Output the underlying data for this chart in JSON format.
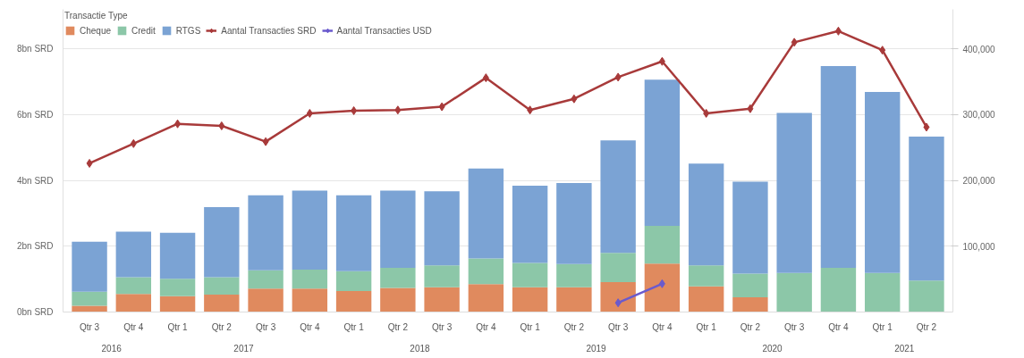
{
  "chart_data": {
    "type": "bar",
    "stacked": true,
    "legend_title": "Transactie Type",
    "legend": "top left",
    "grid": "y",
    "categories": [
      "Qtr 3",
      "Qtr 4",
      "Qtr 1",
      "Qtr 2",
      "Qtr 3",
      "Qtr 4",
      "Qtr 1",
      "Qtr 2",
      "Qtr 3",
      "Qtr 4",
      "Qtr 1",
      "Qtr 2",
      "Qtr 3",
      "Qtr 4",
      "Qtr 1",
      "Qtr 2",
      "Qtr 3",
      "Qtr 4",
      "Qtr 1",
      "Qtr 2"
    ],
    "annotations": [
      "2016",
      "2017",
      "2018",
      "2019",
      "2020",
      "2021"
    ],
    "ylim": [
      0,
      9.2
    ],
    "yticks": [
      {
        "value": 0,
        "label": "0bn SRD"
      },
      {
        "value": 2,
        "label": "2bn SRD"
      },
      {
        "value": 4,
        "label": "4bn SRD"
      },
      {
        "value": 6,
        "label": "6bn SRD"
      },
      {
        "value": 8,
        "label": "8bn SRD"
      }
    ],
    "y2lim": [
      0,
      460000
    ],
    "y2ticks": [
      {
        "value": 100000,
        "label": "100,000"
      },
      {
        "value": 200000,
        "label": "200,000"
      },
      {
        "value": 300000,
        "label": "300,000"
      },
      {
        "value": 400000,
        "label": "400,000"
      }
    ],
    "series": [
      {
        "name": "Cheque",
        "color": "#e08a5e",
        "values": [
          0.19,
          0.55,
          0.48,
          0.53,
          0.71,
          0.71,
          0.64,
          0.73,
          0.75,
          0.85,
          0.75,
          0.75,
          0.91,
          1.47,
          0.78,
          0.45,
          null,
          null,
          null,
          null
        ]
      },
      {
        "name": "Credit",
        "color": "#8cc7a8",
        "values": [
          0.43,
          0.51,
          0.53,
          0.53,
          0.56,
          0.58,
          0.6,
          0.61,
          0.67,
          0.78,
          0.74,
          0.71,
          0.89,
          1.15,
          0.64,
          0.72,
          1.19,
          1.34,
          1.19,
          0.96
        ]
      },
      {
        "name": "RTGS",
        "color": "#7ba3d4",
        "values": [
          1.52,
          1.38,
          1.4,
          2.13,
          2.28,
          2.4,
          2.31,
          2.35,
          2.25,
          2.73,
          2.35,
          2.46,
          3.42,
          4.44,
          3.09,
          2.79,
          4.86,
          6.14,
          5.5,
          4.37
        ]
      },
      {
        "name": "Aantal Transacties SRD",
        "type": "line",
        "axis": "y2",
        "marker": "diamond",
        "line_style": "solid",
        "color": "#a83a3a",
        "values": [
          226000,
          256000,
          286000,
          283000,
          259000,
          302000,
          306000,
          307000,
          312000,
          356000,
          307000,
          324000,
          357000,
          381000,
          302000,
          309000,
          410000,
          427000,
          398000,
          281000
        ]
      },
      {
        "name": "Aantal Transacties USD",
        "type": "line",
        "axis": "y2",
        "marker": "diamond",
        "line_style": "solid",
        "color": "#6a5acd",
        "values": [
          null,
          null,
          null,
          null,
          null,
          null,
          null,
          null,
          null,
          null,
          null,
          null,
          14000,
          43000,
          null,
          null,
          null,
          null,
          null,
          null
        ]
      }
    ]
  }
}
